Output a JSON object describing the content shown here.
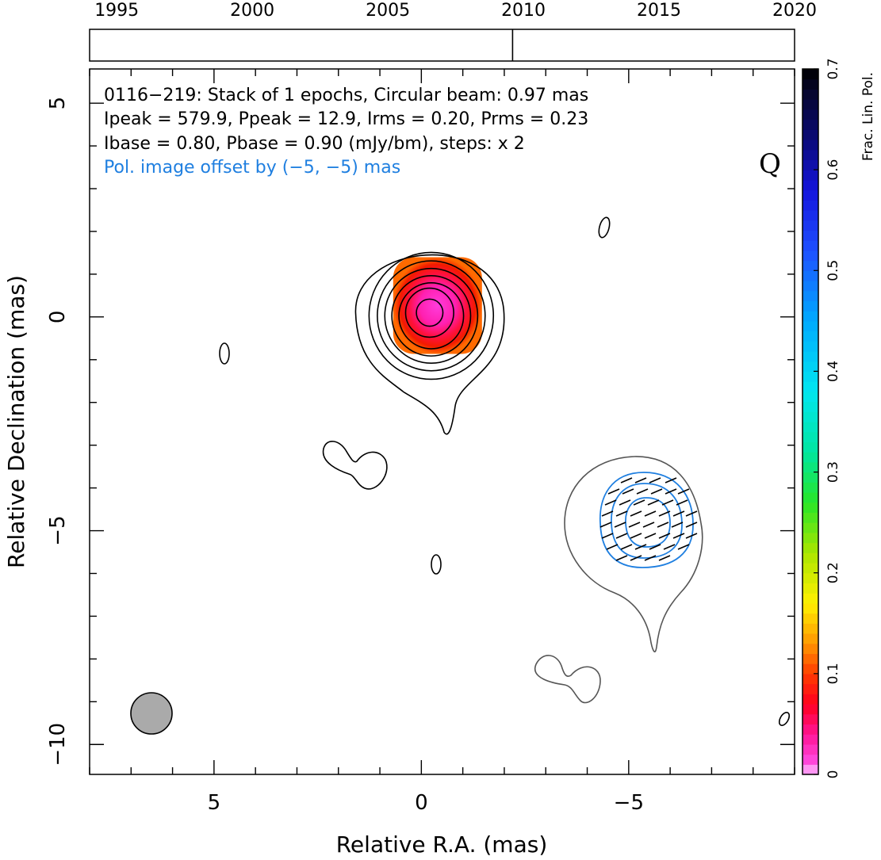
{
  "header": {
    "line1": "0116−219: Stack of 1 epochs, Circular beam: 0.97 mas",
    "line2": "Ipeak = 579.9, Ppeak = 12.9, Irms = 0.20, Prms = 0.23",
    "line3": "Ibase = 0.80, Pbase = 0.90 (mJy/bm), steps: x 2",
    "line4": "Pol. image offset by (−5, −5) mas",
    "band": "Q"
  },
  "colors": {
    "pol_contour": "#1f7fe0",
    "offset_text": "#1f7fe0",
    "stokes_offset_contour": "#555555",
    "beam_fill": "#aaaaaa"
  },
  "chart_data": {
    "type": "heatmap",
    "title": "",
    "xlabel": "Relative R.A. (mas)",
    "ylabel": "Relative Declination (mas)",
    "xlim": [
      8.0,
      -9.0
    ],
    "ylim": [
      -10.7,
      5.8
    ],
    "x_ticks": [
      5,
      0,
      -5
    ],
    "x_tick_labels": [
      "5",
      "0",
      "−5"
    ],
    "y_ticks": [
      5,
      0,
      -5,
      -10
    ],
    "y_tick_labels": [
      "5",
      "0",
      "−5",
      "−10"
    ],
    "x_minor_step": 1,
    "y_minor_step": 1,
    "colorbar": {
      "label": "Frac. Lin. Pol.",
      "range": [
        0,
        0.7
      ],
      "tick_values": [
        0,
        0.1,
        0.2,
        0.3,
        0.4,
        0.5,
        0.6,
        0.7
      ],
      "tick_labels": [
        "0",
        "0.1",
        "0.2",
        "0.3",
        "0.4",
        "0.5",
        "0.6",
        "0.7"
      ]
    },
    "epoch_timeline": {
      "range": [
        1994,
        2020
      ],
      "tick_years": [
        1995,
        2000,
        2005,
        2010,
        2015,
        2020
      ],
      "tick_labels": [
        "1995",
        "2000",
        "2005",
        "2010",
        "2015",
        "2020"
      ],
      "epochs": [
        2009.6
      ]
    },
    "beam": {
      "ra": 6.3,
      "dec": -9.3,
      "diameter_mas": 0.97
    },
    "fractional_pol_center": {
      "ra": -0.2,
      "dec": 0.1
    },
    "stokes_i_contours": [
      {
        "ra": -0.2,
        "dec": 0.1,
        "r": 1.75,
        "tail": true
      },
      {
        "ra": -0.2,
        "dec": 0.1,
        "r": 1.5,
        "tail": false
      },
      {
        "ra": -0.2,
        "dec": 0.1,
        "r": 1.3,
        "tail": false
      },
      {
        "ra": -0.2,
        "dec": 0.1,
        "r": 1.12,
        "tail": false
      },
      {
        "ra": -0.2,
        "dec": 0.1,
        "r": 0.95,
        "tail": false
      },
      {
        "ra": -0.2,
        "dec": 0.1,
        "r": 0.78,
        "tail": false
      },
      {
        "ra": -0.2,
        "dec": 0.1,
        "r": 0.58,
        "tail": false
      },
      {
        "ra": -0.2,
        "dec": 0.1,
        "r": 0.32,
        "tail": false
      }
    ]
  }
}
